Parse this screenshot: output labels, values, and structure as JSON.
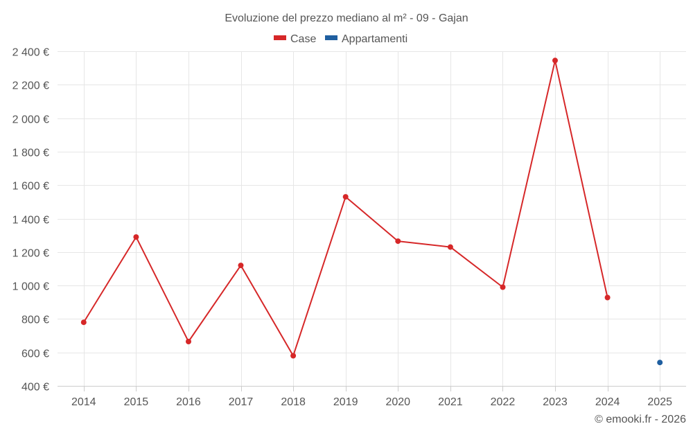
{
  "chart_data": {
    "type": "line",
    "title": "Evoluzione del prezzo mediano al m² - 09 - Gajan",
    "categories": [
      "2014",
      "2015",
      "2016",
      "2017",
      "2018",
      "2019",
      "2020",
      "2021",
      "2022",
      "2023",
      "2024",
      "2025"
    ],
    "series": [
      {
        "name": "Case",
        "color": "#d62728",
        "values": [
          780,
          1290,
          665,
          1120,
          580,
          1530,
          1265,
          1230,
          990,
          2345,
          928,
          null
        ]
      },
      {
        "name": "Appartamenti",
        "color": "#1f5fa0",
        "values": [
          null,
          null,
          null,
          null,
          null,
          null,
          null,
          null,
          null,
          null,
          null,
          540
        ]
      }
    ],
    "ylim": [
      400,
      2400
    ],
    "yticks": [
      400,
      600,
      800,
      1000,
      1200,
      1400,
      1600,
      1800,
      2000,
      2200,
      2400
    ],
    "ytick_labels": [
      "400 €",
      "600 €",
      "800 €",
      "1 000 €",
      "1 200 €",
      "1 400 €",
      "1 600 €",
      "1 800 €",
      "2 000 €",
      "2 200 €",
      "2 400 €"
    ],
    "xlabel": "",
    "ylabel": "",
    "grid": true,
    "legend_position": "top-center"
  },
  "credit": "© emooki.fr - 2026"
}
